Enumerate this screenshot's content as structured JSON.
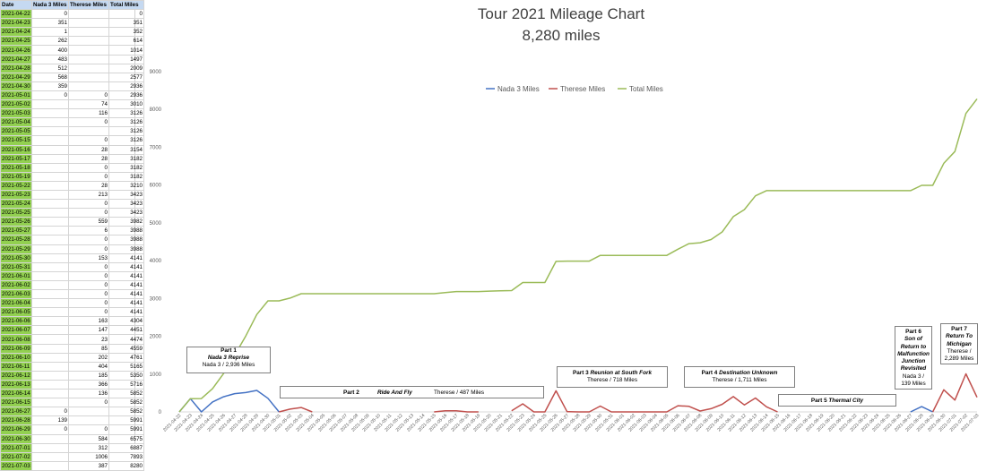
{
  "table": {
    "headers": [
      "Date",
      "Nada 3 Miles",
      "Therese Miles",
      "Total Miles"
    ],
    "rows": [
      [
        "2021-04-22",
        "0",
        "",
        "0"
      ],
      [
        "2021-04-23",
        "351",
        "",
        "351"
      ],
      [
        "2021-04-24",
        "1",
        "",
        "352"
      ],
      [
        "2021-04-25",
        "262",
        "",
        "614"
      ],
      [
        "2021-04-26",
        "400",
        "",
        "1014"
      ],
      [
        "2021-04-27",
        "483",
        "",
        "1497"
      ],
      [
        "2021-04-28",
        "512",
        "",
        "2009"
      ],
      [
        "2021-04-29",
        "568",
        "",
        "2577"
      ],
      [
        "2021-04-30",
        "359",
        "",
        "2936"
      ],
      [
        "2021-05-01",
        "0",
        "0",
        "2936"
      ],
      [
        "2021-05-02",
        "",
        "74",
        "3010"
      ],
      [
        "2021-05-03",
        "",
        "116",
        "3126"
      ],
      [
        "2021-05-04",
        "",
        "0",
        "3126"
      ],
      [
        "2021-05-05",
        "",
        "",
        "3126"
      ],
      [
        "2021-05-15",
        "",
        "0",
        "3126"
      ],
      [
        "2021-05-16",
        "",
        "28",
        "3154"
      ],
      [
        "2021-05-17",
        "",
        "28",
        "3182"
      ],
      [
        "2021-05-18",
        "",
        "0",
        "3182"
      ],
      [
        "2021-05-19",
        "",
        "0",
        "3182"
      ],
      [
        "2021-05-22",
        "",
        "28",
        "3210"
      ],
      [
        "2021-05-23",
        "",
        "213",
        "3423"
      ],
      [
        "2021-05-24",
        "",
        "0",
        "3423"
      ],
      [
        "2021-05-25",
        "",
        "0",
        "3423"
      ],
      [
        "2021-05-26",
        "",
        "559",
        "3982"
      ],
      [
        "2021-05-27",
        "",
        "6",
        "3988"
      ],
      [
        "2021-05-28",
        "",
        "0",
        "3988"
      ],
      [
        "2021-05-29",
        "",
        "0",
        "3988"
      ],
      [
        "2021-05-30",
        "",
        "153",
        "4141"
      ],
      [
        "2021-05-31",
        "",
        "0",
        "4141"
      ],
      [
        "2021-06-01",
        "",
        "0",
        "4141"
      ],
      [
        "2021-06-02",
        "",
        "0",
        "4141"
      ],
      [
        "2021-06-03",
        "",
        "0",
        "4141"
      ],
      [
        "2021-06-04",
        "",
        "0",
        "4141"
      ],
      [
        "2021-06-05",
        "",
        "0",
        "4141"
      ],
      [
        "2021-06-06",
        "",
        "163",
        "4304"
      ],
      [
        "2021-06-07",
        "",
        "147",
        "4451"
      ],
      [
        "2021-06-08",
        "",
        "23",
        "4474"
      ],
      [
        "2021-06-09",
        "",
        "85",
        "4559"
      ],
      [
        "2021-06-10",
        "",
        "202",
        "4761"
      ],
      [
        "2021-06-11",
        "",
        "404",
        "5165"
      ],
      [
        "2021-06-12",
        "",
        "185",
        "5350"
      ],
      [
        "2021-06-13",
        "",
        "366",
        "5716"
      ],
      [
        "2021-06-14",
        "",
        "136",
        "5852"
      ],
      [
        "2021-06-15",
        "",
        "0",
        "5852"
      ],
      [
        "2021-06-27",
        "0",
        "",
        "5852"
      ],
      [
        "2021-06-28",
        "139",
        "",
        "5991"
      ],
      [
        "2021-06-29",
        "0",
        "0",
        "5991"
      ],
      [
        "2021-06-30",
        "",
        "584",
        "6575"
      ],
      [
        "2021-07-01",
        "",
        "312",
        "6887"
      ],
      [
        "2021-07-02",
        "",
        "1006",
        "7893"
      ],
      [
        "2021-07-03",
        "",
        "387",
        "8280"
      ]
    ]
  },
  "chart_data": {
    "type": "line",
    "title": "Tour 2021 Mileage Chart",
    "subtitle": "8,280 miles",
    "ylim": [
      0,
      9000
    ],
    "yticks": [
      0,
      1000,
      2000,
      3000,
      4000,
      5000,
      6000,
      7000,
      8000,
      9000
    ],
    "legend_position": "top-center",
    "x": [
      "2021-04-22",
      "2021-04-23",
      "2021-04-24",
      "2021-04-25",
      "2021-04-26",
      "2021-04-27",
      "2021-04-28",
      "2021-04-29",
      "2021-04-30",
      "2021-05-01",
      "2021-05-02",
      "2021-05-03",
      "2021-05-04",
      "2021-05-05",
      "2021-05-06",
      "2021-05-07",
      "2021-05-08",
      "2021-05-09",
      "2021-05-10",
      "2021-05-11",
      "2021-05-12",
      "2021-05-13",
      "2021-05-14",
      "2021-05-15",
      "2021-05-16",
      "2021-05-17",
      "2021-05-18",
      "2021-05-19",
      "2021-05-20",
      "2021-05-21",
      "2021-05-22",
      "2021-05-23",
      "2021-05-24",
      "2021-05-25",
      "2021-05-26",
      "2021-05-27",
      "2021-05-28",
      "2021-05-29",
      "2021-05-30",
      "2021-05-31",
      "2021-06-01",
      "2021-06-02",
      "2021-06-03",
      "2021-06-04",
      "2021-06-05",
      "2021-06-06",
      "2021-06-07",
      "2021-06-08",
      "2021-06-09",
      "2021-06-10",
      "2021-06-11",
      "2021-06-12",
      "2021-06-13",
      "2021-06-14",
      "2021-06-15",
      "2021-06-16",
      "2021-06-17",
      "2021-06-18",
      "2021-06-19",
      "2021-06-20",
      "2021-06-21",
      "2021-06-22",
      "2021-06-23",
      "2021-06-24",
      "2021-06-25",
      "2021-06-26",
      "2021-06-27",
      "2021-06-28",
      "2021-06-29",
      "2021-06-30",
      "2021-07-01",
      "2021-07-02",
      "2021-07-03"
    ],
    "series": [
      {
        "name": "Nada 3 Miles",
        "color": "#4472c4",
        "values": [
          0,
          351,
          1,
          262,
          400,
          483,
          512,
          568,
          359,
          0,
          null,
          null,
          null,
          null,
          null,
          null,
          null,
          null,
          null,
          null,
          null,
          null,
          null,
          null,
          null,
          null,
          null,
          null,
          null,
          null,
          null,
          null,
          null,
          null,
          null,
          null,
          null,
          null,
          null,
          null,
          null,
          null,
          null,
          null,
          null,
          null,
          null,
          null,
          null,
          null,
          null,
          null,
          null,
          null,
          null,
          null,
          null,
          null,
          null,
          null,
          null,
          null,
          null,
          null,
          null,
          null,
          0,
          139,
          0,
          null,
          null,
          null,
          null
        ]
      },
      {
        "name": "Therese Miles",
        "color": "#c0504d",
        "values": [
          null,
          null,
          null,
          null,
          null,
          null,
          null,
          null,
          null,
          0,
          74,
          116,
          0,
          null,
          null,
          null,
          null,
          null,
          null,
          null,
          null,
          null,
          null,
          0,
          28,
          28,
          0,
          0,
          null,
          null,
          28,
          213,
          0,
          0,
          559,
          6,
          0,
          0,
          153,
          0,
          0,
          0,
          0,
          0,
          0,
          163,
          147,
          23,
          85,
          202,
          404,
          185,
          366,
          136,
          0,
          null,
          null,
          null,
          null,
          null,
          null,
          null,
          null,
          null,
          null,
          null,
          null,
          null,
          0,
          584,
          312,
          1006,
          387
        ]
      },
      {
        "name": "Total Miles",
        "color": "#9bbb59",
        "values": [
          0,
          351,
          352,
          614,
          1014,
          1497,
          2009,
          2577,
          2936,
          2936,
          3010,
          3126,
          3126,
          3126,
          3126,
          3126,
          3126,
          3126,
          3126,
          3126,
          3126,
          3126,
          3126,
          3126,
          3154,
          3182,
          3182,
          3182,
          3196,
          3203,
          3210,
          3423,
          3423,
          3423,
          3982,
          3988,
          3988,
          3988,
          4141,
          4141,
          4141,
          4141,
          4141,
          4141,
          4141,
          4304,
          4451,
          4474,
          4559,
          4761,
          5165,
          5350,
          5716,
          5852,
          5852,
          5852,
          5852,
          5852,
          5852,
          5852,
          5852,
          5852,
          5852,
          5852,
          5852,
          5852,
          5852,
          5991,
          5991,
          6575,
          6887,
          7893,
          8280
        ]
      }
    ],
    "annotations": [
      {
        "id": "part1",
        "lines": [
          "Part 1",
          "Nada 3 Reprise",
          "Nada 3 / 2,936 Miles"
        ]
      },
      {
        "id": "part2",
        "part": "Part 2",
        "name": "Ride And Fly",
        "detail": "Therese / 487 Miles"
      },
      {
        "id": "part3",
        "line1_part": "Part 3",
        "line1_name": "Reunion at South Fork",
        "line2": "Therese / 718 Miles"
      },
      {
        "id": "part4",
        "line1_part": "Part 4",
        "line1_name": "Destination Unknown",
        "line2": "Therese / 1,711 Miles"
      },
      {
        "id": "part5",
        "part": "Part 5",
        "name": "Thermal City"
      },
      {
        "id": "part6",
        "lines": [
          "Part 6",
          "Son of",
          "Return to",
          "Malfunction",
          "Junction",
          "Revisited",
          "Nada 3 /",
          "139 Miles"
        ]
      },
      {
        "id": "part7",
        "lines": [
          "Part 7",
          "Return To",
          "Michigan",
          "Therese /",
          "2,289 Miles"
        ]
      }
    ]
  }
}
